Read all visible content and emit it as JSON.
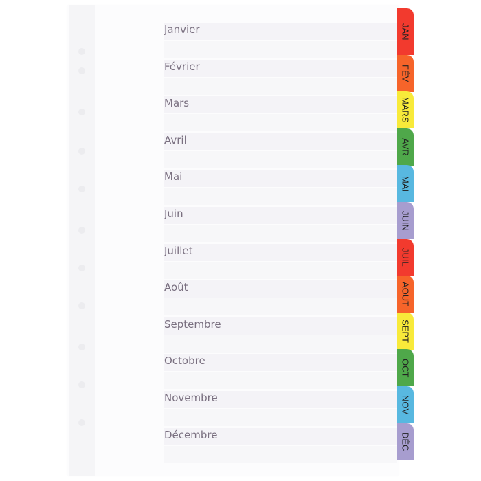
{
  "months": [
    {
      "label": "Janvier",
      "tab": "JAN",
      "color": "#f23a2e"
    },
    {
      "label": "Février",
      "tab": "FÉV",
      "color": "#f6642a"
    },
    {
      "label": "Mars",
      "tab": "MARS",
      "color": "#f8ea3a"
    },
    {
      "label": "Avril",
      "tab": "AVR",
      "color": "#4fa84a"
    },
    {
      "label": "Mai",
      "tab": "MAI",
      "color": "#58b8e0"
    },
    {
      "label": "Juin",
      "tab": "JUIN",
      "color": "#a79dcf"
    },
    {
      "label": "Juillet",
      "tab": "JUIL",
      "color": "#f23a2e"
    },
    {
      "label": "Août",
      "tab": "AOUT",
      "color": "#f6642a"
    },
    {
      "label": "Septembre",
      "tab": "SEPT",
      "color": "#f8ea3a"
    },
    {
      "label": "Octobre",
      "tab": "OCT",
      "color": "#4fa84a"
    },
    {
      "label": "Novembre",
      "tab": "NOV",
      "color": "#58b8e0"
    },
    {
      "label": "Décembre",
      "tab": "DÉC",
      "color": "#a79dcf"
    }
  ]
}
